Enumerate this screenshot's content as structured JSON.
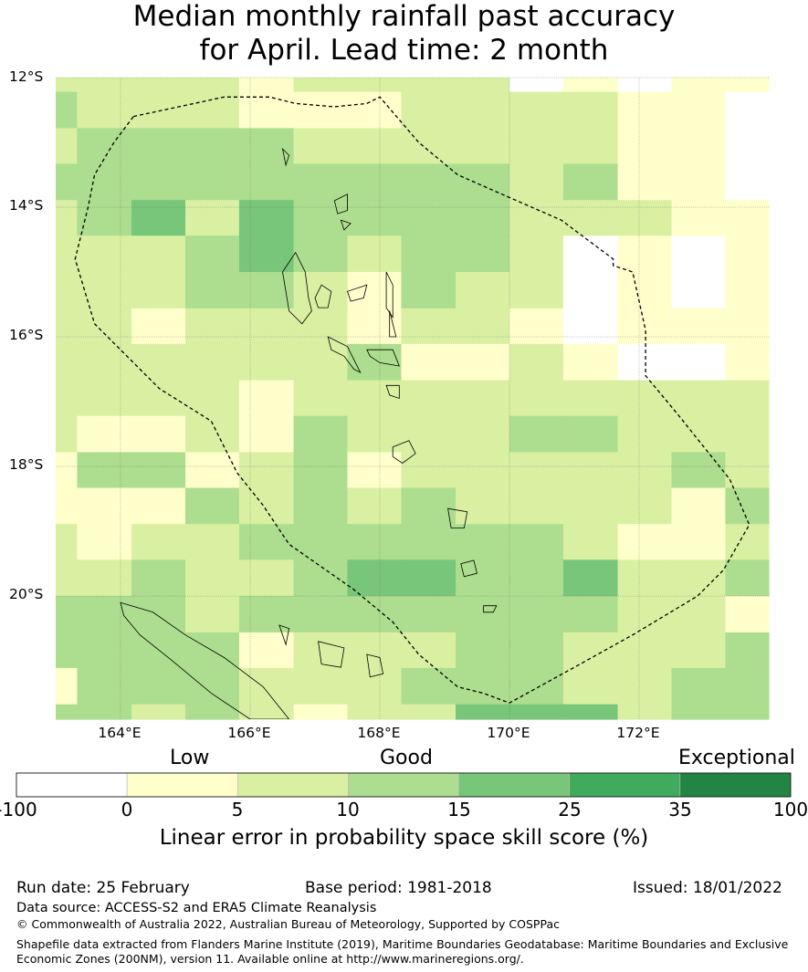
{
  "title": {
    "line1": "Median monthly rainfall past accuracy",
    "line2": "for April. Lead time: 2 month"
  },
  "map": {
    "lon_range": [
      163.0,
      174.0
    ],
    "lat_range": [
      -21.9,
      -12.0
    ],
    "lat_labels": [
      {
        "value": -12,
        "text": "12°S"
      },
      {
        "value": -14,
        "text": "14°S"
      },
      {
        "value": -16,
        "text": "16°S"
      },
      {
        "value": -18,
        "text": "18°S"
      },
      {
        "value": -20,
        "text": "20°S"
      }
    ],
    "lon_labels": [
      {
        "value": 164,
        "text": "164°E"
      },
      {
        "value": 166,
        "text": "166°E"
      },
      {
        "value": 168,
        "text": "168°E"
      },
      {
        "value": 170,
        "text": "170°E"
      },
      {
        "value": 172,
        "text": "172°E"
      }
    ],
    "grid": {
      "col_edges": [
        163.0,
        163.33,
        164.17,
        165.0,
        165.83,
        166.67,
        167.5,
        168.33,
        169.17,
        170.0,
        170.83,
        171.67,
        172.5,
        173.33,
        174.0
      ],
      "row_edges": [
        -12.0,
        -12.22,
        -12.78,
        -13.33,
        -13.89,
        -14.44,
        -15.0,
        -15.56,
        -16.11,
        -16.67,
        -17.22,
        -17.78,
        -18.33,
        -18.89,
        -19.44,
        -20.0,
        -20.56,
        -21.11,
        -21.67,
        -21.9
      ],
      "rows": [
        [
          2,
          2,
          2,
          2,
          1,
          2,
          2,
          2,
          2,
          0,
          1,
          0,
          1,
          1
        ],
        [
          3,
          2,
          2,
          2,
          1,
          1,
          1,
          2,
          2,
          2,
          2,
          1,
          1,
          0
        ],
        [
          2,
          3,
          3,
          3,
          3,
          2,
          2,
          2,
          2,
          2,
          2,
          1,
          1,
          0
        ],
        [
          3,
          3,
          3,
          3,
          3,
          3,
          3,
          3,
          3,
          2,
          3,
          1,
          1,
          0
        ],
        [
          2,
          3,
          4,
          2,
          4,
          3,
          3,
          3,
          3,
          2,
          2,
          2,
          1,
          1
        ],
        [
          2,
          2,
          2,
          3,
          4,
          3,
          2,
          3,
          3,
          2,
          0,
          1,
          0,
          1
        ],
        [
          2,
          2,
          2,
          3,
          3,
          2,
          1,
          3,
          2,
          2,
          0,
          1,
          0,
          1
        ],
        [
          2,
          2,
          1,
          2,
          2,
          2,
          1,
          2,
          2,
          1,
          0,
          1,
          1,
          1
        ],
        [
          2,
          2,
          2,
          2,
          2,
          2,
          3,
          1,
          1,
          2,
          1,
          0,
          0,
          1
        ],
        [
          2,
          2,
          2,
          2,
          1,
          2,
          2,
          2,
          2,
          2,
          2,
          2,
          2,
          2
        ],
        [
          2,
          1,
          1,
          2,
          1,
          3,
          2,
          2,
          2,
          3,
          3,
          2,
          2,
          2
        ],
        [
          1,
          3,
          3,
          1,
          2,
          3,
          1,
          2,
          2,
          2,
          2,
          2,
          3,
          2
        ],
        [
          1,
          1,
          1,
          3,
          2,
          3,
          2,
          3,
          2,
          2,
          2,
          2,
          1,
          3
        ],
        [
          2,
          1,
          2,
          2,
          3,
          3,
          3,
          3,
          3,
          3,
          2,
          1,
          1,
          2
        ],
        [
          2,
          2,
          3,
          2,
          2,
          3,
          4,
          4,
          3,
          3,
          4,
          2,
          2,
          3
        ],
        [
          3,
          3,
          3,
          2,
          3,
          3,
          3,
          3,
          3,
          3,
          3,
          2,
          2,
          1
        ],
        [
          3,
          3,
          3,
          3,
          1,
          2,
          2,
          2,
          3,
          3,
          2,
          2,
          2,
          3
        ],
        [
          1,
          3,
          3,
          3,
          2,
          2,
          2,
          3,
          3,
          3,
          2,
          2,
          3,
          3
        ],
        [
          3,
          3,
          2,
          3,
          2,
          1,
          2,
          2,
          4,
          4,
          4,
          2,
          3,
          3
        ]
      ]
    },
    "eez_boundary": [
      [
        164.2,
        -12.6
      ],
      [
        165.6,
        -12.3
      ],
      [
        166.3,
        -12.3
      ],
      [
        166.7,
        -12.4
      ],
      [
        167.3,
        -12.45
      ],
      [
        167.8,
        -12.4
      ],
      [
        168.0,
        -12.3
      ],
      [
        168.6,
        -13.0
      ],
      [
        169.2,
        -13.5
      ],
      [
        170.0,
        -13.85
      ],
      [
        170.8,
        -14.2
      ],
      [
        171.6,
        -14.8
      ],
      [
        171.6,
        -14.9
      ],
      [
        171.9,
        -15.0
      ],
      [
        172.1,
        -15.9
      ],
      [
        172.1,
        -16.6
      ],
      [
        172.6,
        -17.2
      ],
      [
        173.0,
        -17.7
      ],
      [
        173.4,
        -18.2
      ],
      [
        173.7,
        -18.9
      ],
      [
        173.3,
        -19.6
      ],
      [
        172.9,
        -20.0
      ],
      [
        171.9,
        -20.6
      ],
      [
        171.0,
        -21.1
      ],
      [
        170.0,
        -21.65
      ],
      [
        169.6,
        -21.5
      ],
      [
        169.2,
        -21.4
      ],
      [
        168.6,
        -20.9
      ],
      [
        168.2,
        -20.4
      ],
      [
        167.6,
        -19.9
      ],
      [
        166.6,
        -19.2
      ],
      [
        166.2,
        -18.6
      ],
      [
        165.8,
        -18.1
      ],
      [
        165.6,
        -17.7
      ],
      [
        165.4,
        -17.3
      ],
      [
        164.6,
        -16.8
      ],
      [
        164.2,
        -16.4
      ],
      [
        163.6,
        -15.8
      ],
      [
        163.3,
        -14.8
      ],
      [
        163.5,
        -14.0
      ],
      [
        163.6,
        -13.5
      ],
      [
        163.9,
        -13.0
      ],
      [
        164.2,
        -12.6
      ]
    ],
    "islands": [
      [
        [
          166.5,
          -15.0
        ],
        [
          166.7,
          -14.7
        ],
        [
          166.85,
          -15.0
        ],
        [
          166.9,
          -15.4
        ],
        [
          166.95,
          -15.6
        ],
        [
          166.8,
          -15.8
        ],
        [
          166.6,
          -15.6
        ],
        [
          166.55,
          -15.3
        ]
      ],
      [
        [
          167.0,
          -15.4
        ],
        [
          167.1,
          -15.2
        ],
        [
          167.25,
          -15.3
        ],
        [
          167.2,
          -15.55
        ],
        [
          167.05,
          -15.55
        ]
      ],
      [
        [
          167.2,
          -16.0
        ],
        [
          167.5,
          -16.15
        ],
        [
          167.6,
          -16.35
        ],
        [
          167.7,
          -16.55
        ],
        [
          167.6,
          -16.5
        ],
        [
          167.45,
          -16.3
        ],
        [
          167.25,
          -16.2
        ]
      ],
      [
        [
          167.8,
          -16.2
        ],
        [
          168.2,
          -16.2
        ],
        [
          168.3,
          -16.45
        ],
        [
          168.0,
          -16.4
        ],
        [
          167.85,
          -16.3
        ]
      ],
      [
        [
          168.1,
          -16.75
        ],
        [
          168.3,
          -16.75
        ],
        [
          168.3,
          -16.95
        ],
        [
          168.15,
          -16.9
        ]
      ],
      [
        [
          168.2,
          -17.7
        ],
        [
          168.45,
          -17.6
        ],
        [
          168.55,
          -17.8
        ],
        [
          168.35,
          -17.95
        ],
        [
          168.2,
          -17.85
        ]
      ],
      [
        [
          169.05,
          -18.65
        ],
        [
          169.35,
          -18.7
        ],
        [
          169.3,
          -18.95
        ],
        [
          169.1,
          -18.95
        ]
      ],
      [
        [
          169.25,
          -19.5
        ],
        [
          169.45,
          -19.45
        ],
        [
          169.5,
          -19.65
        ],
        [
          169.3,
          -19.7
        ]
      ],
      [
        [
          167.5,
          -15.3
        ],
        [
          167.8,
          -15.2
        ],
        [
          167.75,
          -15.4
        ],
        [
          167.55,
          -15.45
        ]
      ],
      [
        [
          168.1,
          -15.0
        ],
        [
          168.2,
          -15.2
        ],
        [
          168.2,
          -15.7
        ],
        [
          168.1,
          -15.55
        ]
      ],
      [
        [
          168.15,
          -15.6
        ],
        [
          168.25,
          -16.0
        ],
        [
          168.15,
          -16.0
        ]
      ],
      [
        [
          167.3,
          -13.9
        ],
        [
          167.5,
          -13.8
        ],
        [
          167.5,
          -14.05
        ],
        [
          167.35,
          -14.1
        ]
      ],
      [
        [
          167.4,
          -14.2
        ],
        [
          167.55,
          -14.25
        ],
        [
          167.45,
          -14.35
        ]
      ],
      [
        [
          166.5,
          -13.1
        ],
        [
          166.6,
          -13.2
        ],
        [
          166.55,
          -13.35
        ]
      ],
      [
        [
          164.0,
          -20.1
        ],
        [
          164.5,
          -20.25
        ],
        [
          165.0,
          -20.6
        ],
        [
          165.6,
          -20.95
        ],
        [
          166.2,
          -21.4
        ],
        [
          166.6,
          -21.9
        ],
        [
          166.0,
          -21.9
        ],
        [
          165.4,
          -21.5
        ],
        [
          164.8,
          -21.0
        ],
        [
          164.3,
          -20.6
        ],
        [
          164.05,
          -20.3
        ]
      ],
      [
        [
          167.8,
          -20.9
        ],
        [
          168.0,
          -20.95
        ],
        [
          168.05,
          -21.2
        ],
        [
          167.85,
          -21.25
        ]
      ],
      [
        [
          166.45,
          -20.45
        ],
        [
          166.6,
          -20.5
        ],
        [
          166.55,
          -20.75
        ]
      ],
      [
        [
          169.6,
          -20.15
        ],
        [
          169.8,
          -20.15
        ],
        [
          169.75,
          -20.25
        ],
        [
          169.6,
          -20.25
        ]
      ],
      [
        [
          167.05,
          -20.7
        ],
        [
          167.45,
          -20.8
        ],
        [
          167.4,
          -21.1
        ],
        [
          167.1,
          -21.05
        ]
      ]
    ]
  },
  "colorbar": {
    "categories": [
      "Low",
      "Good",
      "Exceptional"
    ],
    "ticks": [
      "-100",
      "0",
      "5",
      "10",
      "15",
      "25",
      "35",
      "100"
    ],
    "colors": [
      "#ffffff",
      "#ffffcc",
      "#d9f0a3",
      "#addd8e",
      "#78c679",
      "#41ab5d",
      "#238443"
    ],
    "title": "Linear error in probability space skill score (%)"
  },
  "footer": {
    "run_date": "Run date: 25 February",
    "base_period": "Base period: 1981-2018",
    "issued": "Issued: 18/01/2022",
    "data_source": "Data source: ACCESS-S2 and ERA5 Climate Reanalysis",
    "copyright": "© Commonwealth of Australia 2022, Australian Bureau of Meteorology, Supported by COSPPac",
    "shapefile_line1": "Shapefile data extracted from Flanders Marine Institute (2019), Maritime Boundaries Geodatabase: Maritime Boundaries and Exclusive",
    "shapefile_line2": "Economic Zones (200NM), version 11. Available online at http://www.marineregions.org/."
  }
}
